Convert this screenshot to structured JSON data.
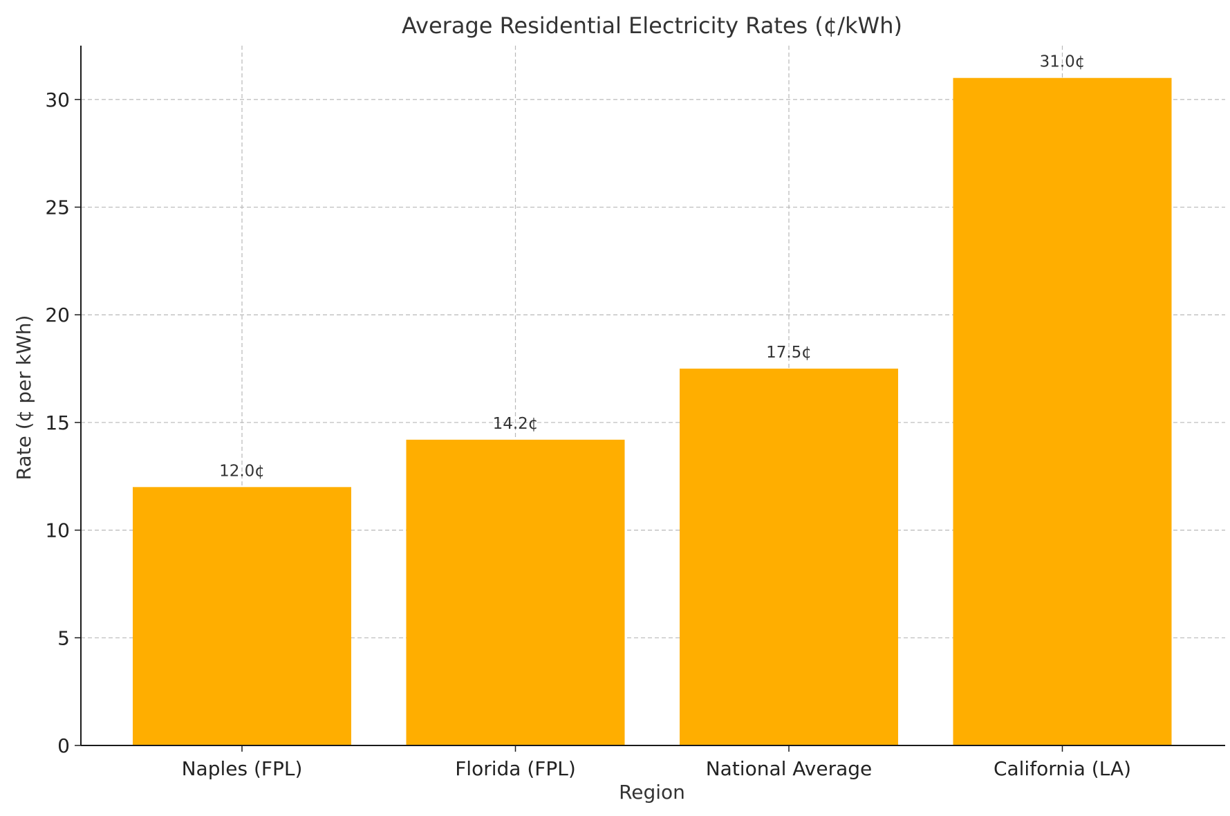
{
  "chart_data": {
    "type": "bar",
    "title": "Average Residential Electricity Rates (¢/kWh)",
    "xlabel": "Region",
    "ylabel": "Rate (¢ per kWh)",
    "categories": [
      "Naples (FPL)",
      "Florida (FPL)",
      "National Average",
      "California (LA)"
    ],
    "values": [
      12.0,
      14.2,
      17.5,
      31.0
    ],
    "value_labels": [
      "12.0¢",
      "14.2¢",
      "17.5¢",
      "31.0¢"
    ],
    "ylim": [
      0,
      32.5
    ],
    "yticks": [
      0,
      5,
      10,
      15,
      20,
      25,
      30
    ],
    "grid": true,
    "bar_color": "#FFAE00"
  }
}
